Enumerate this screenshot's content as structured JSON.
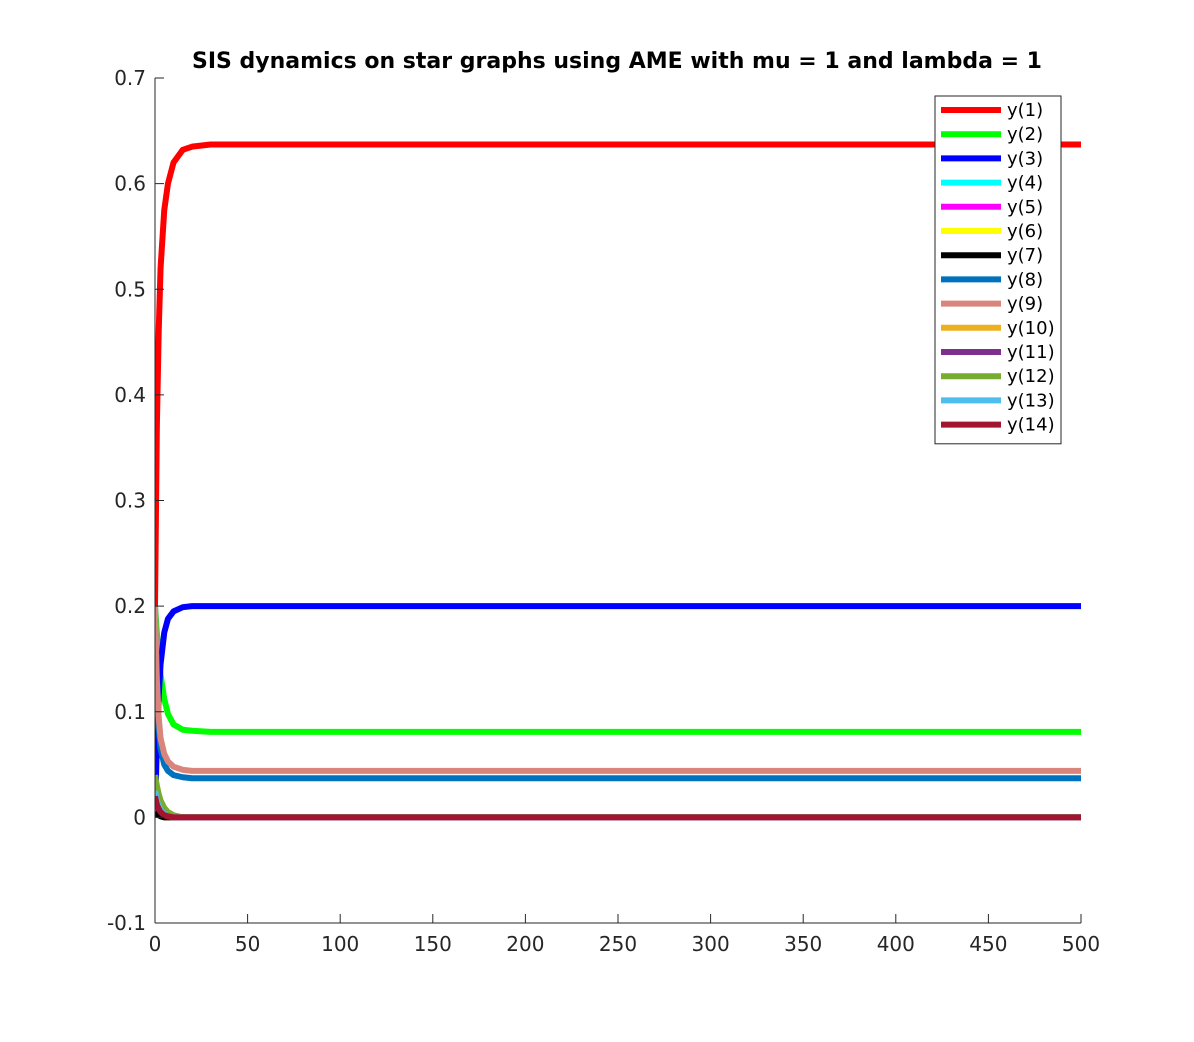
{
  "chart_data": {
    "type": "line",
    "title": "SIS dynamics on star graphs using AME with mu = 1 and lambda = 1",
    "xlabel": "",
    "ylabel": "",
    "xlim": [
      0,
      500
    ],
    "ylim": [
      -0.1,
      0.7
    ],
    "x_ticks": [
      0,
      50,
      100,
      150,
      200,
      250,
      300,
      350,
      400,
      450,
      500
    ],
    "x_tick_labels": [
      "0",
      "50",
      "100",
      "150",
      "200",
      "250",
      "300",
      "350",
      "400",
      "450",
      "500"
    ],
    "y_ticks": [
      -0.1,
      0,
      0.1,
      0.2,
      0.3,
      0.4,
      0.5,
      0.6,
      0.7
    ],
    "y_tick_labels": [
      "-0.1",
      "0",
      "0.1",
      "0.2",
      "0.3",
      "0.4",
      "0.5",
      "0.6",
      "0.7"
    ],
    "grid": false,
    "legend_position": "top-right",
    "x": [
      0,
      1,
      2,
      3,
      5,
      7,
      10,
      15,
      20,
      30,
      50,
      100,
      500
    ],
    "series": [
      {
        "name": "y(1)",
        "color": "#ff0000",
        "values": [
          0.2,
          0.37,
          0.46,
          0.52,
          0.575,
          0.6,
          0.62,
          0.632,
          0.635,
          0.637,
          0.637,
          0.637,
          0.637
        ]
      },
      {
        "name": "y(2)",
        "color": "#00ff00",
        "values": [
          0.2,
          0.175,
          0.155,
          0.135,
          0.112,
          0.098,
          0.088,
          0.083,
          0.082,
          0.081,
          0.081,
          0.081,
          0.081
        ]
      },
      {
        "name": "y(3)",
        "color": "#0000ff",
        "values": [
          0.0,
          0.07,
          0.115,
          0.145,
          0.175,
          0.188,
          0.195,
          0.199,
          0.2,
          0.2,
          0.2,
          0.2,
          0.2
        ]
      },
      {
        "name": "y(4)",
        "color": "#00ffff",
        "values": [
          0.03,
          0.02,
          0.014,
          0.009,
          0.004,
          0.002,
          0.001,
          0.0,
          0.0,
          0.0,
          0.0,
          0.0,
          0.0
        ]
      },
      {
        "name": "y(5)",
        "color": "#ff00ff",
        "values": [
          0.01,
          0.006,
          0.004,
          0.002,
          0.001,
          0.0,
          0.0,
          0.0,
          0.0,
          0.0,
          0.0,
          0.0,
          0.0
        ]
      },
      {
        "name": "y(6)",
        "color": "#ffff00",
        "values": [
          0.005,
          0.003,
          0.002,
          0.001,
          0.0,
          0.0,
          0.0,
          0.0,
          0.0,
          0.0,
          0.0,
          0.0,
          0.0
        ]
      },
      {
        "name": "y(7)",
        "color": "#000000",
        "values": [
          0.005,
          0.003,
          0.002,
          0.001,
          0.0,
          0.0,
          0.0,
          0.0,
          0.0,
          0.0,
          0.0,
          0.0,
          0.0
        ]
      },
      {
        "name": "y(8)",
        "color": "#0072bd",
        "values": [
          0.2,
          0.12,
          0.085,
          0.065,
          0.05,
          0.044,
          0.04,
          0.038,
          0.037,
          0.037,
          0.037,
          0.037,
          0.037
        ]
      },
      {
        "name": "y(9)",
        "color": "#d9857b",
        "values": [
          0.2,
          0.13,
          0.095,
          0.075,
          0.06,
          0.053,
          0.048,
          0.045,
          0.044,
          0.044,
          0.044,
          0.044,
          0.044
        ]
      },
      {
        "name": "y(10)",
        "color": "#edb120",
        "values": [
          0.04,
          0.028,
          0.02,
          0.014,
          0.007,
          0.003,
          0.001,
          0.0,
          0.0,
          0.0,
          0.0,
          0.0,
          0.0
        ]
      },
      {
        "name": "y(11)",
        "color": "#7e2f8e",
        "values": [
          0.02,
          0.013,
          0.009,
          0.006,
          0.003,
          0.001,
          0.0,
          0.0,
          0.0,
          0.0,
          0.0,
          0.0,
          0.0
        ]
      },
      {
        "name": "y(12)",
        "color": "#77ac30",
        "values": [
          0.04,
          0.03,
          0.022,
          0.016,
          0.009,
          0.005,
          0.002,
          0.0,
          0.0,
          0.0,
          0.0,
          0.0,
          0.0
        ]
      },
      {
        "name": "y(13)",
        "color": "#4dbeee",
        "values": [
          0.025,
          0.016,
          0.011,
          0.007,
          0.003,
          0.001,
          0.0,
          0.0,
          0.0,
          0.0,
          0.0,
          0.0,
          0.0
        ]
      },
      {
        "name": "y(14)",
        "color": "#a2142f",
        "values": [
          0.02,
          0.012,
          0.008,
          0.005,
          0.002,
          0.001,
          0.0,
          0.0,
          0.0,
          0.0,
          0.0,
          0.0,
          0.0
        ]
      }
    ]
  }
}
